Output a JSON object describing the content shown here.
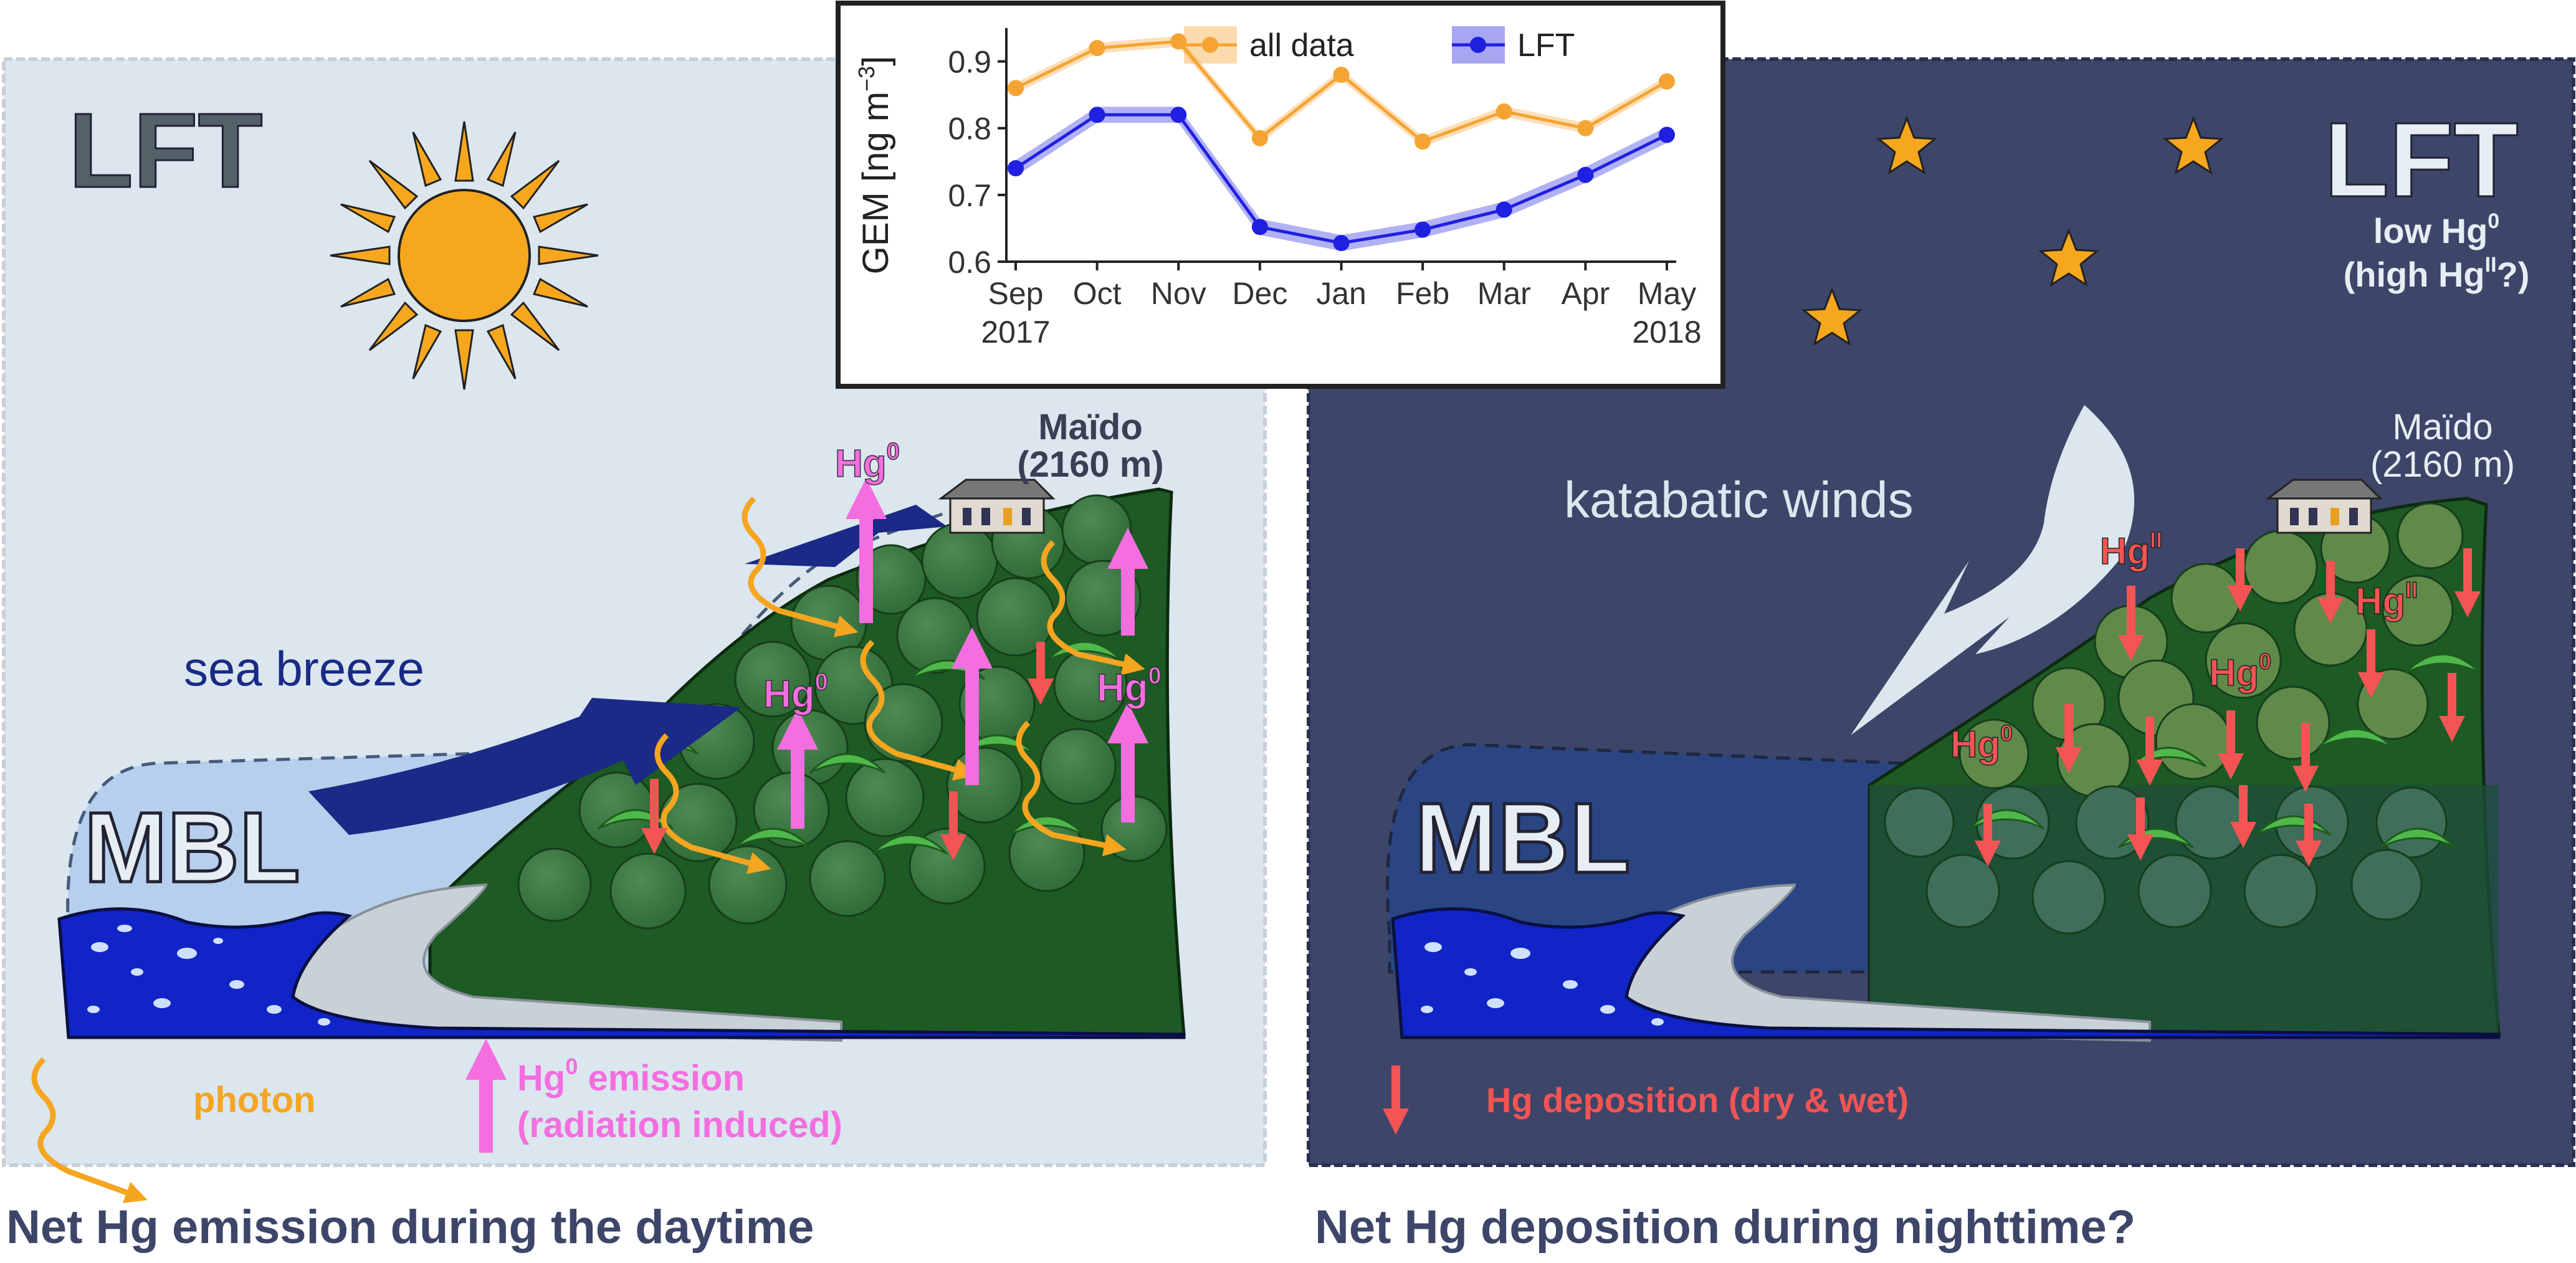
{
  "left_panel": {
    "lft_label": "LFT",
    "mbl_label": "MBL",
    "sea_breeze_label": "sea breeze",
    "site_name": "Maïdo",
    "site_altitude": "(2160 m)",
    "hg0_labels": [
      "Hg",
      "Hg",
      "Hg"
    ],
    "hg0_superscript": "0",
    "legend_photon": "photon",
    "legend_emission_line1": "Hg",
    "legend_emission_sup": "0",
    "legend_emission_line1_rest": " emission",
    "legend_emission_line2": "(radiation induced)",
    "caption": "Net Hg emission during the daytime"
  },
  "right_panel": {
    "lft_label": "LFT",
    "lft_sub1_base": "low Hg",
    "lft_sub1_sup": "0",
    "lft_sub2_base": "(high Hg",
    "lft_sub2_sup": "II",
    "lft_sub2_end": "?)",
    "mbl_label": "MBL",
    "winds_label": "katabatic winds",
    "site_name": "Maïdo",
    "site_altitude": "(2160 m)",
    "hg_labels": [
      {
        "base": "Hg",
        "sup": "II"
      },
      {
        "base": "Hg",
        "sup": "II"
      },
      {
        "base": "Hg",
        "sup": "0"
      },
      {
        "base": "Hg",
        "sup": "0"
      }
    ],
    "legend_deposition": "Hg deposition (dry & wet)",
    "caption": "Net Hg deposition during nighttime?"
  },
  "chart_data": {
    "type": "line",
    "categories": [
      "Sep\n2017",
      "Oct",
      "Nov",
      "Dec",
      "Jan",
      "Feb",
      "Mar",
      "Apr",
      "May\n2018"
    ],
    "tick_labels_top": [
      "Sep",
      "Oct",
      "Nov",
      "Dec",
      "Jan",
      "Feb",
      "Mar",
      "Apr",
      "May"
    ],
    "tick_labels_bottom": [
      "2017",
      "",
      "",
      "",
      "",
      "",
      "",
      "",
      "2018"
    ],
    "ylabel_base": "GEM [ng m",
    "ylabel_sup": "−3",
    "ylabel_end": "]",
    "ylim": [
      0.6,
      0.95
    ],
    "yticks": [
      0.6,
      0.7,
      0.8,
      0.9
    ],
    "legend_placement": "top-right",
    "series": [
      {
        "name": "all data",
        "color": "#f5a433",
        "values": [
          0.86,
          0.92,
          0.93,
          0.785,
          0.88,
          0.78,
          0.825,
          0.8,
          0.87
        ],
        "band": 0.008
      },
      {
        "name": "LFT",
        "color": "#2020e0",
        "values": [
          0.74,
          0.82,
          0.82,
          0.652,
          0.628,
          0.648,
          0.678,
          0.73,
          0.79
        ],
        "band": 0.012
      }
    ]
  },
  "colors": {
    "day_sky": "#dbe6ee",
    "night_sky": "#3d4569",
    "sea_breeze": "#1a2a86",
    "mbl_day": "#b6cfec",
    "mbl_night": "#2b4583",
    "ocean": "#1024c8",
    "forest": "#1d5a24",
    "emission": "#f46ee0",
    "deposition": "#f45454",
    "photon": "#f5a520",
    "sun": "#f6a71e",
    "caption": "#3d4569"
  }
}
